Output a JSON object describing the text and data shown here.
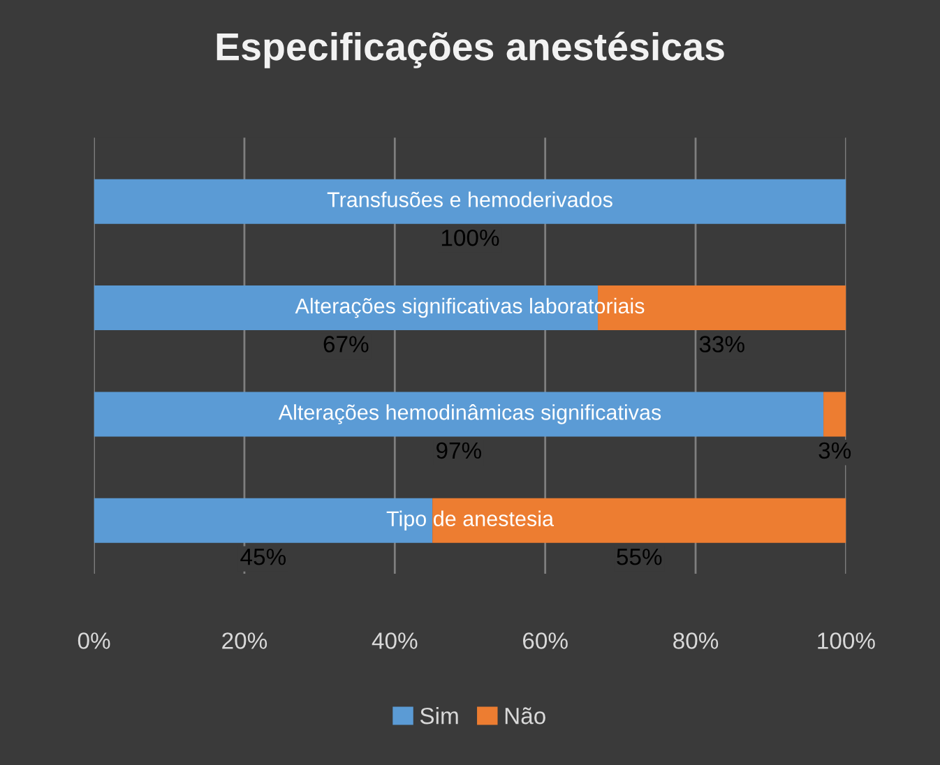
{
  "chart_data": {
    "type": "bar",
    "orientation": "horizontal",
    "stacked": true,
    "title": "Especificações anestésicas",
    "categories": [
      "Transfusões e hemoderivados",
      "Alterações significativas laboratoriais",
      "Alterações hemodinâmicas significativas",
      "Tipo de anestesia"
    ],
    "series": [
      {
        "name": "Sim",
        "color": "#5b9bd5",
        "values": [
          100,
          67,
          97,
          45
        ],
        "value_labels": [
          "100%",
          "67%",
          "97%",
          "45%"
        ]
      },
      {
        "name": "Não",
        "color": "#ed7d31",
        "values": [
          0,
          33,
          3,
          55
        ],
        "value_labels": [
          null,
          "33%",
          "3%",
          "55%"
        ]
      }
    ],
    "xlim": [
      0,
      100
    ],
    "xticks": [
      {
        "value": 0,
        "label": "0%"
      },
      {
        "value": 20,
        "label": "20%"
      },
      {
        "value": 40,
        "label": "40%"
      },
      {
        "value": 60,
        "label": "60%"
      },
      {
        "value": 80,
        "label": "80%"
      },
      {
        "value": 100,
        "label": "100%"
      }
    ],
    "grid": "x",
    "legend": "bottom"
  }
}
